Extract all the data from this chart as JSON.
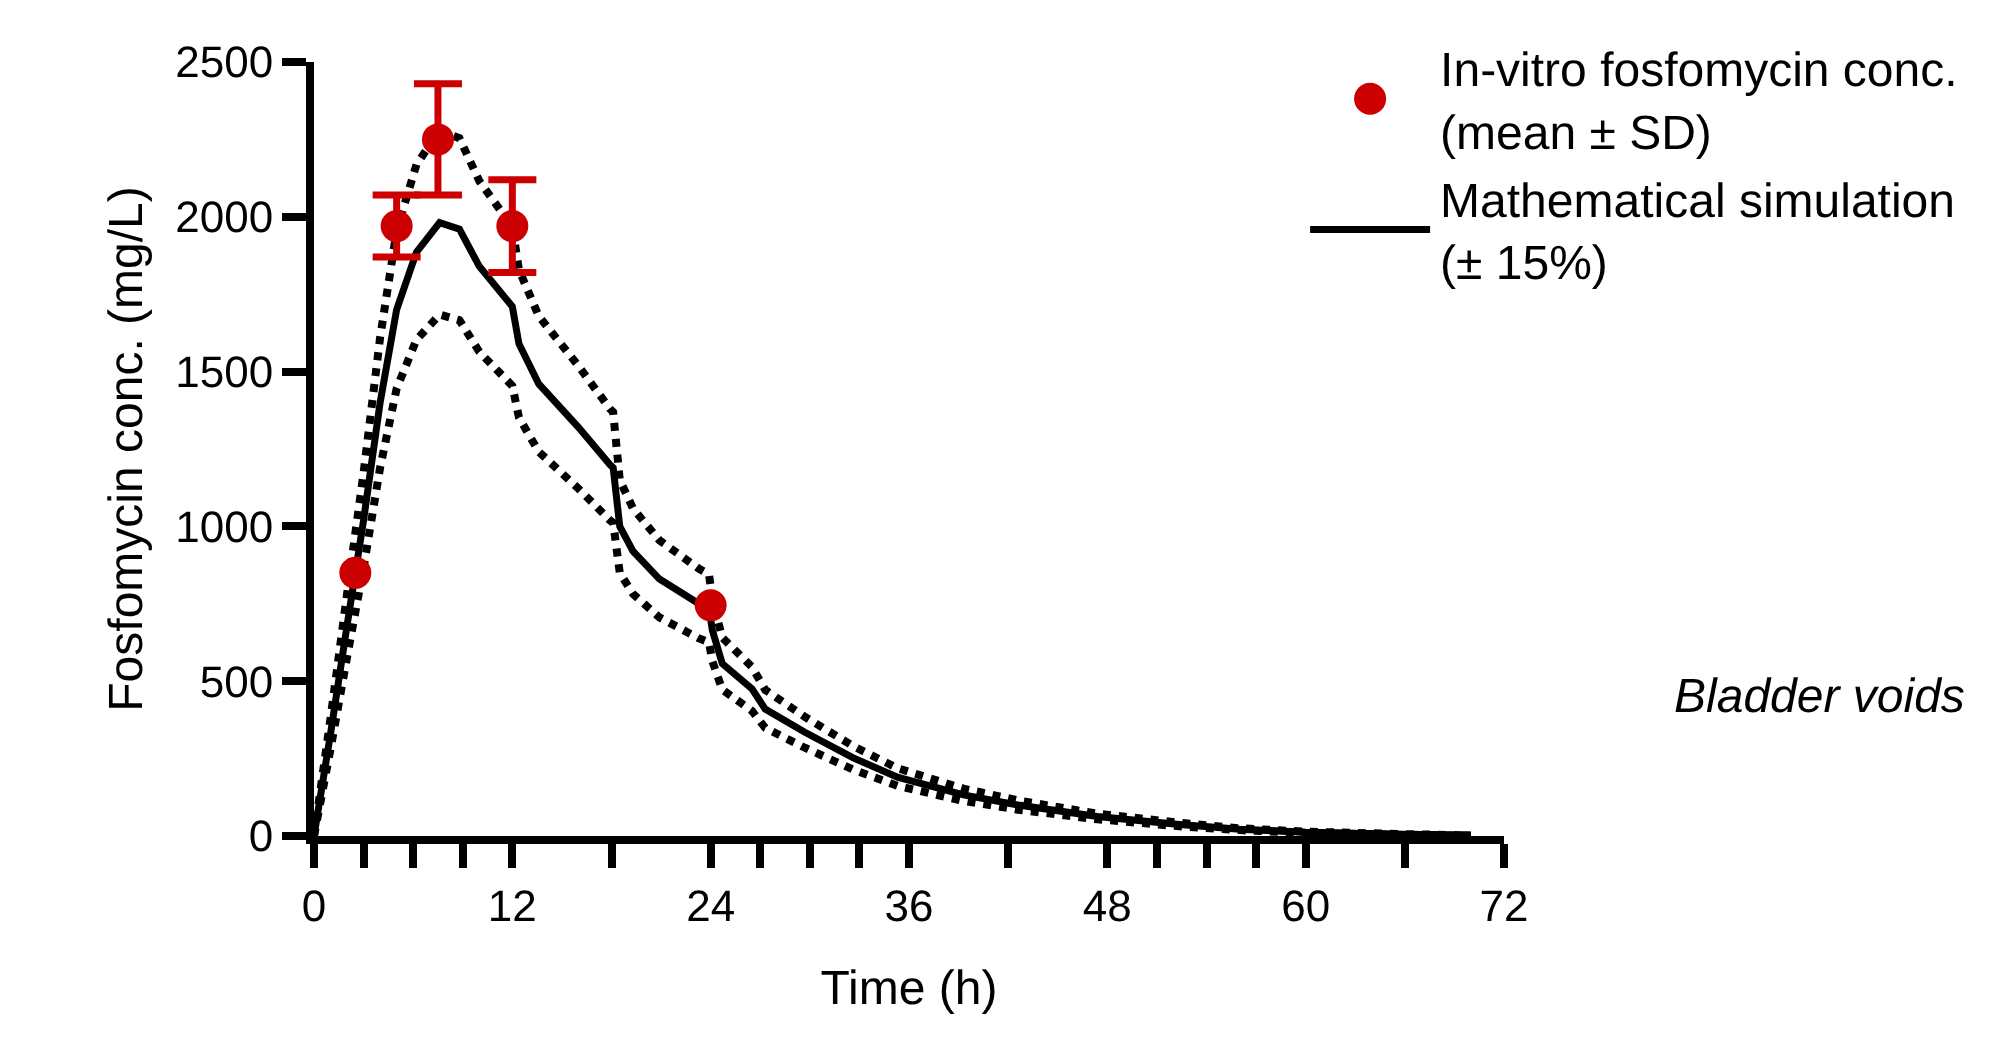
{
  "chart_data": {
    "type": "line",
    "xlabel": "Time (h)",
    "ylabel": "Fosfomycin conc. (mg/L)",
    "xlim": [
      0,
      72
    ],
    "ylim": [
      0,
      2500
    ],
    "xticks": [
      0,
      {
        "value": 3,
        "label": null
      },
      {
        "value": 6,
        "label": null
      },
      {
        "value": 9,
        "label": null
      },
      12,
      {
        "value": 18,
        "label": null
      },
      24,
      {
        "value": 27,
        "label": null
      },
      {
        "value": 30,
        "label": null
      },
      {
        "value": 33,
        "label": null
      },
      36,
      {
        "value": 42,
        "label": null
      },
      48,
      {
        "value": 51,
        "label": null
      },
      {
        "value": 54,
        "label": null
      },
      {
        "value": 57,
        "label": null
      },
      60,
      {
        "value": 66,
        "label": null
      },
      72
    ],
    "yticks": [
      0,
      500,
      1000,
      1500,
      2000,
      2500
    ],
    "legend": "top right",
    "series": [
      {
        "name": "In-vitro fosfomycin conc.\n(mean ± SD)",
        "type": "scatter",
        "marker": "circle",
        "color": "#cc0000",
        "x": [
          2.5,
          5,
          7.5,
          12,
          24
        ],
        "values": [
          850,
          1970,
          2250,
          1970,
          745
        ],
        "errors": [
          null,
          100,
          180,
          150,
          null
        ]
      },
      {
        "name": "Mathematical simulation\n(± 15%)",
        "line_style": "solid",
        "color": "#000000",
        "x": [
          0,
          1,
          2,
          2.5,
          3,
          4,
          5,
          6.2,
          7.6,
          8.8,
          10,
          12,
          12.4,
          13.6,
          16,
          17.9,
          18.1,
          18.5,
          19.3,
          20.9,
          23.3,
          23.9,
          24.1,
          24.7,
          26.5,
          27.3,
          29.7,
          32.6,
          35.3,
          39.3,
          42.6,
          47.4,
          52.2,
          56,
          60,
          66,
          70
        ],
        "values": [
          0,
          330,
          680,
          850,
          1020,
          1400,
          1700,
          1886,
          1981,
          1960,
          1840,
          1710,
          1590,
          1460,
          1320,
          1200,
          1190,
          1000,
          920,
          830,
          750,
          735,
          665,
          557,
          475,
          410,
          335,
          253,
          190,
          133,
          100,
          63,
          38,
          22,
          12,
          5,
          2
        ]
      },
      {
        "line_style": "dotted",
        "color": "#000000",
        "x": [
          0,
          1,
          2,
          2.5,
          3,
          4,
          5,
          6.2,
          7.6,
          8.8,
          10,
          12,
          12.4,
          13.6,
          16,
          17.9,
          18.1,
          18.5,
          19.3,
          20.9,
          23.3,
          23.9,
          24.1,
          24.7,
          26.5,
          27.3,
          29.7,
          32.6,
          35.3,
          39.3,
          42.6,
          47.4,
          52.2,
          56,
          60,
          66,
          70
        ],
        "values": [
          0,
          380,
          782,
          978,
          1173,
          1610,
          1955,
          2169,
          2278,
          2254,
          2116,
          1967,
          1829,
          1679,
          1518,
          1380,
          1369,
          1150,
          1058,
          955,
          863,
          845,
          765,
          641,
          546,
          472,
          385,
          291,
          219,
          153,
          115,
          72,
          44,
          25,
          14,
          6,
          2
        ]
      },
      {
        "line_style": "dotted",
        "color": "#000000",
        "x": [
          0,
          1,
          2,
          2.5,
          3,
          4,
          5,
          6.2,
          7.6,
          8.8,
          10,
          12,
          12.4,
          13.6,
          16,
          17.9,
          18.1,
          18.5,
          19.3,
          20.9,
          23.3,
          23.9,
          24.1,
          24.7,
          26.5,
          27.3,
          29.7,
          32.6,
          35.3,
          39.3,
          42.6,
          47.4,
          52.2,
          56,
          60,
          66,
          70
        ],
        "values": [
          0,
          281,
          578,
          723,
          867,
          1190,
          1445,
          1603,
          1684,
          1666,
          1564,
          1454,
          1352,
          1241,
          1122,
          1020,
          1012,
          850,
          782,
          706,
          638,
          625,
          565,
          473,
          404,
          349,
          285,
          215,
          162,
          113,
          85,
          54,
          32,
          19,
          10,
          4,
          2
        ]
      }
    ],
    "annotations": [
      "Bladder voids"
    ]
  }
}
